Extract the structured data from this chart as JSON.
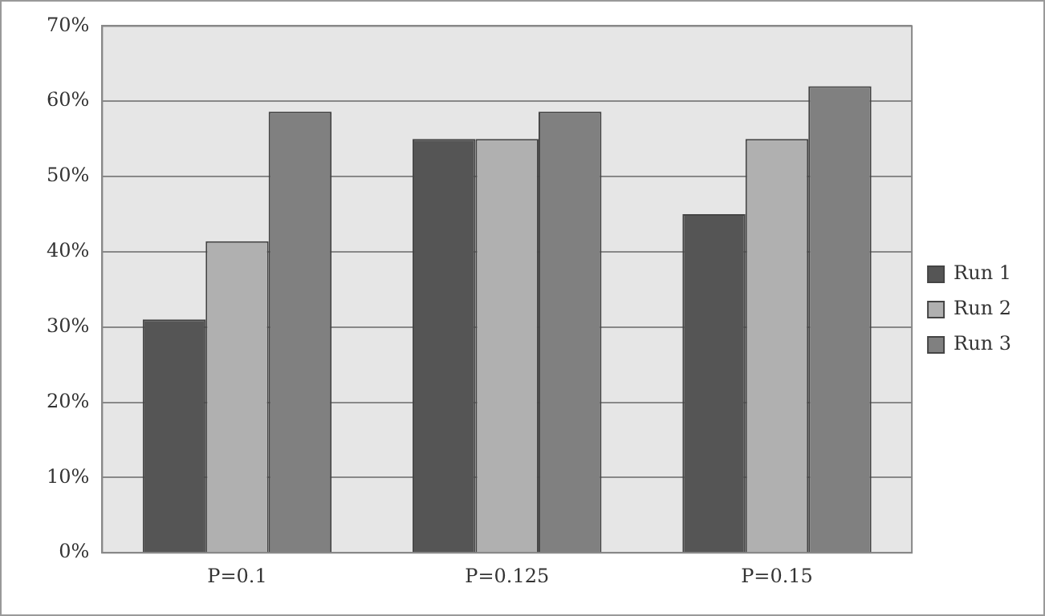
{
  "chart_data": {
    "type": "bar",
    "categories": [
      "P=0.1",
      "P=0.125",
      "P=0.15"
    ],
    "series": [
      {
        "name": "Run 1",
        "color": "#555555",
        "values": [
          31,
          55,
          45
        ]
      },
      {
        "name": "Run 2",
        "color": "#b0b0b0",
        "values": [
          41.4,
          55,
          55
        ]
      },
      {
        "name": "Run 3",
        "color": "#808080",
        "values": [
          58.6,
          58.6,
          62
        ]
      }
    ],
    "ylim": [
      0,
      70
    ],
    "yticks": [
      {
        "value": 0,
        "label": "0%"
      },
      {
        "value": 10,
        "label": "10%"
      },
      {
        "value": 20,
        "label": "20%"
      },
      {
        "value": 30,
        "label": "30%"
      },
      {
        "value": 40,
        "label": "40%"
      },
      {
        "value": 50,
        "label": "50%"
      },
      {
        "value": 60,
        "label": "60%"
      },
      {
        "value": 70,
        "label": "70%"
      }
    ],
    "grid": "y",
    "legend": "right"
  }
}
